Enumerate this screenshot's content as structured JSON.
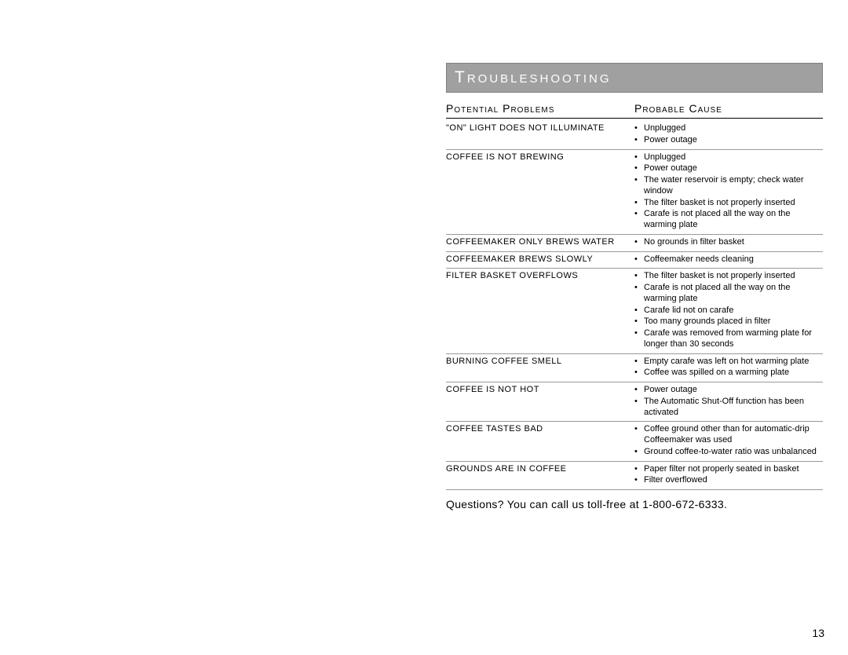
{
  "title": "Troubleshooting",
  "headers": {
    "col1": "Potential Problems",
    "col2": "Probable Cause"
  },
  "rows": [
    {
      "problem": "\"ON\" LIGHT DOES NOT ILLUMINATE",
      "causes": [
        "Unplugged",
        "Power outage"
      ]
    },
    {
      "problem": "COFFEE IS NOT BREWING",
      "causes": [
        "Unplugged",
        "Power outage",
        "The water reservoir is empty; check water window",
        "The filter basket is not properly inserted",
        "Carafe is not placed all the way on the warming plate"
      ]
    },
    {
      "problem": "COFFEEMAKER ONLY BREWS WATER",
      "causes": [
        "No grounds in filter basket"
      ]
    },
    {
      "problem": "COFFEEMAKER BREWS SLOWLY",
      "causes": [
        "Coffeemaker needs cleaning"
      ]
    },
    {
      "problem": "FILTER BASKET OVERFLOWS",
      "causes": [
        "The filter basket is not properly inserted",
        "Carafe is not placed all the way on the warming plate",
        "Carafe lid not on carafe",
        "Too many grounds placed in filter",
        "Carafe was removed from warming plate for longer than 30 seconds"
      ]
    },
    {
      "problem": "BURNING COFFEE SMELL",
      "causes": [
        "Empty carafe was left on hot warming plate",
        "Coffee was spilled on a warming plate"
      ]
    },
    {
      "problem": "COFFEE IS NOT HOT",
      "causes": [
        "Power outage",
        "The Automatic Shut-Off function has been activated"
      ]
    },
    {
      "problem": "COFFEE TASTES BAD",
      "causes": [
        "Coffee ground other than for automatic-drip Coffeemaker was used",
        "Ground coffee-to-water ratio was unbalanced"
      ]
    },
    {
      "problem": "GROUNDS ARE IN COFFEE",
      "causes": [
        "Paper filter not properly seated in basket",
        "Filter overflowed"
      ]
    }
  ],
  "footer": "Questions? You can call us toll-free at 1-800-672-6333.",
  "pageNumber": "13",
  "colors": {
    "bannerBg": "#a0a0a0",
    "bannerText": "#ffffff",
    "text": "#000000"
  }
}
